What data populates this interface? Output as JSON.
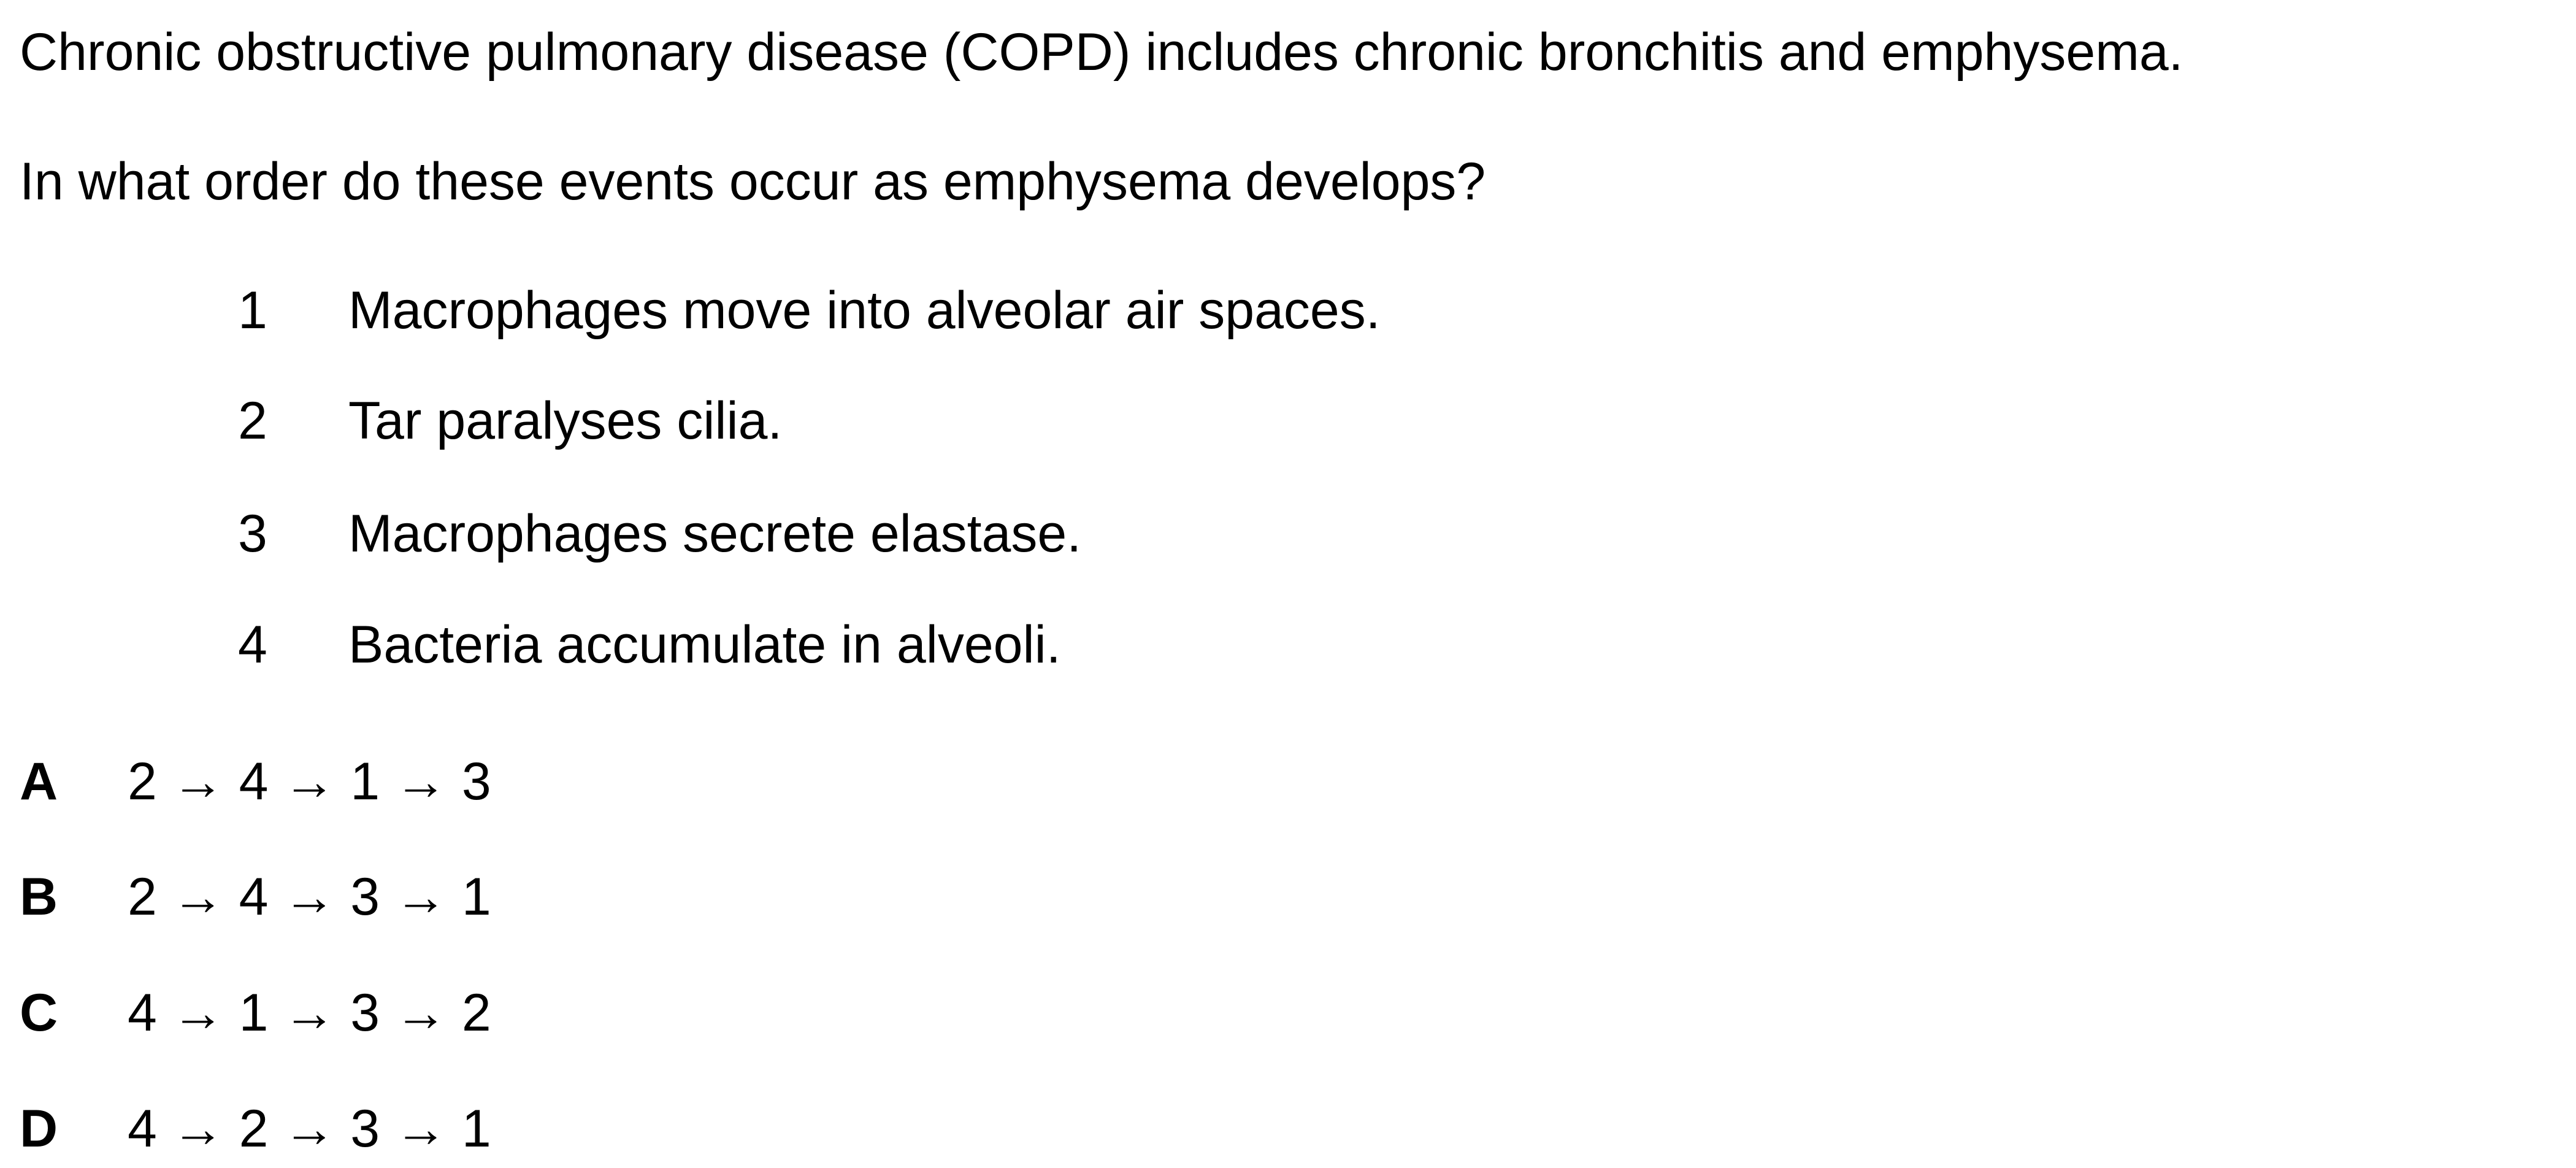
{
  "question": {
    "intro": "Chronic obstructive pulmonary disease (COPD) includes chronic bronchitis and emphysema.",
    "prompt": "In what order do these events occur as emphysema develops?"
  },
  "statements": [
    {
      "number": "1",
      "text": "Macrophages move into alveolar air spaces."
    },
    {
      "number": "2",
      "text": "Tar paralyses cilia."
    },
    {
      "number": "3",
      "text": "Macrophages secrete elastase."
    },
    {
      "number": "4",
      "text": "Bacteria accumulate in alveoli."
    }
  ],
  "options": [
    {
      "letter": "A",
      "sequence": "2 → 4 → 1 → 3"
    },
    {
      "letter": "B",
      "sequence": "2 → 4 → 3 → 1"
    },
    {
      "letter": "C",
      "sequence": "4 → 1 → 3 → 2"
    },
    {
      "letter": "D",
      "sequence": "4 → 2 → 3 → 1"
    }
  ]
}
